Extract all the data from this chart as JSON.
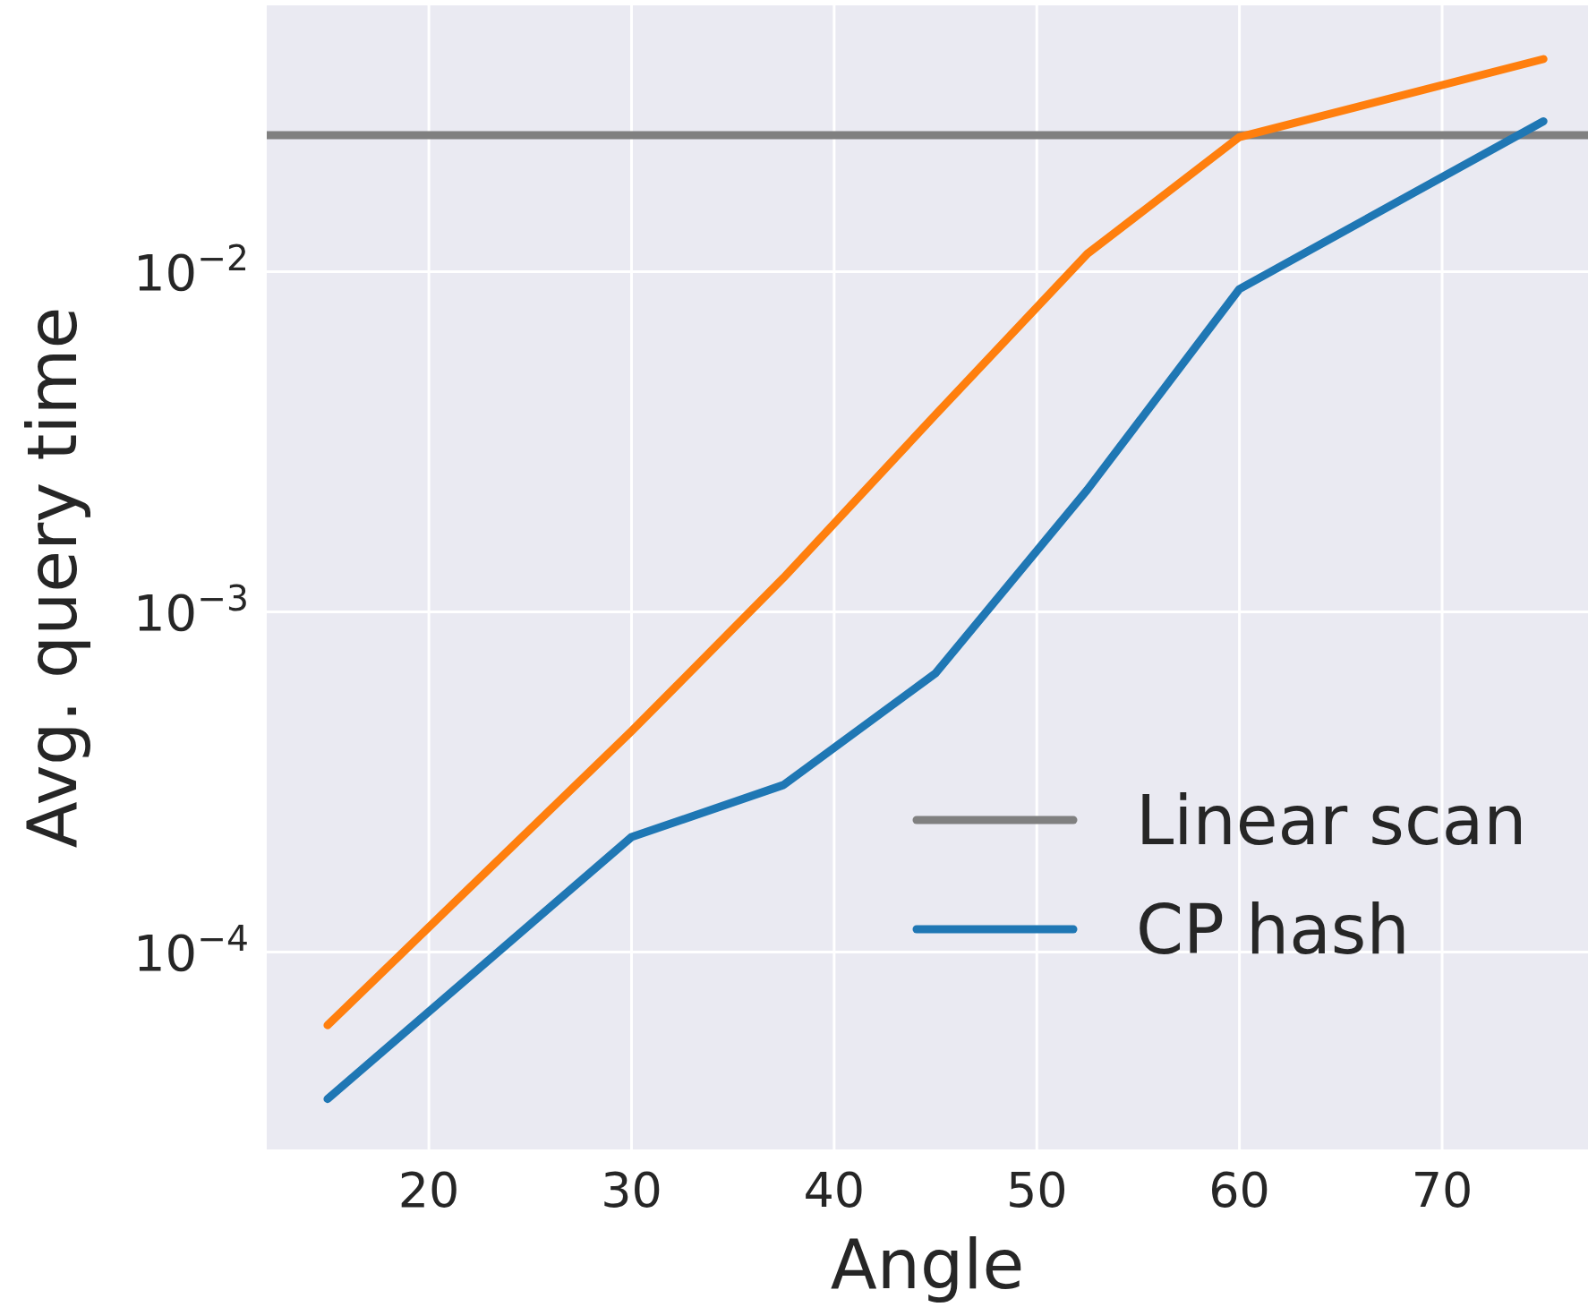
{
  "chart_data": {
    "type": "line",
    "xlabel": "Angle",
    "ylabel": "Avg. query time",
    "log": "y",
    "grid": true,
    "legend": "bottom right",
    "line_style": "solid",
    "marker": "none",
    "xlim": [
      12,
      77.2
    ],
    "xticks": [
      20,
      30,
      40,
      50,
      60,
      70
    ],
    "ylim": [
      2.63e-05,
      0.0607
    ],
    "yticks": [
      {
        "value": 0.0001,
        "label": "10$^{−4}$"
      },
      {
        "value": 0.001,
        "label": "10$^{−3}$"
      },
      {
        "value": 0.01,
        "label": "10$^{−2}$"
      }
    ],
    "x": [
      15,
      30,
      37.5,
      45,
      52.5,
      60,
      75
    ],
    "series": [
      {
        "name": "Linear scan",
        "color": "#808080",
        "x": [
          12,
          77.2
        ],
        "values": [
          0.0252,
          0.0252
        ]
      },
      {
        "name": "CP hash",
        "color": "#1f77b4",
        "values": [
          3.7e-05,
          0.000218,
          0.00031,
          0.00066,
          0.00229,
          0.0089,
          0.0277
        ]
      },
      {
        "color": "#ff7f0e",
        "values": [
          6.1e-05,
          0.000446,
          0.00126,
          0.0038,
          0.0113,
          0.0249,
          0.0422
        ]
      }
    ]
  }
}
